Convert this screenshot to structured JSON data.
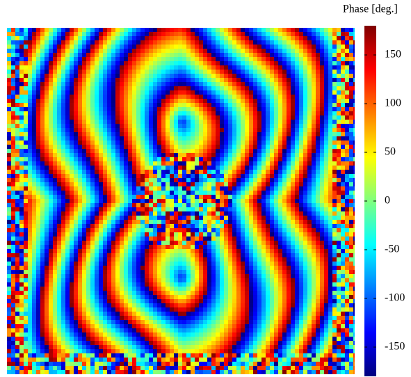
{
  "chart_data": {
    "type": "heatmap",
    "colorbar_label": "Phase [deg.]",
    "clim": [
      -180,
      180
    ],
    "colorbar_ticks": [
      -150,
      -100,
      -50,
      0,
      50,
      100,
      150
    ],
    "colormap": "jet"
  }
}
